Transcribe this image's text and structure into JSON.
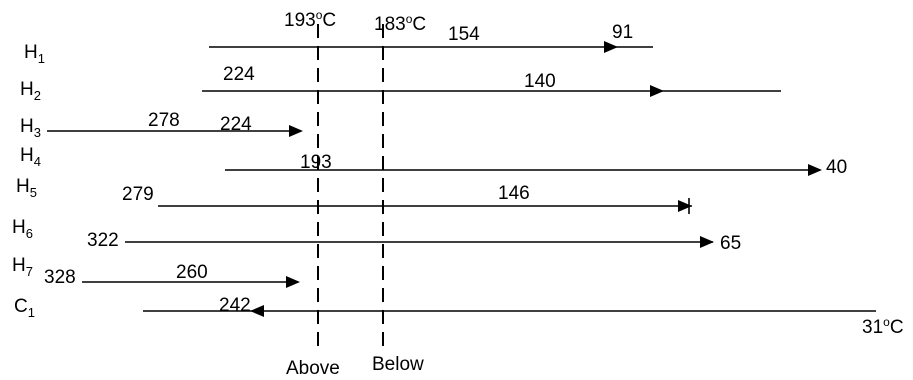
{
  "pinch": {
    "hot_temp": {
      "value": "193",
      "unit_sup": "o",
      "unit": "C"
    },
    "cold_temp": {
      "value": "183",
      "unit_sup": "o",
      "unit": "C"
    },
    "above_label": "Above",
    "below_label": "Below"
  },
  "streams": [
    {
      "id": "H1",
      "letter": "H",
      "sub": "1",
      "labels": [
        "154",
        "91"
      ]
    },
    {
      "id": "H2",
      "letter": "H",
      "sub": "2",
      "labels": [
        "224",
        "140"
      ]
    },
    {
      "id": "H3",
      "letter": "H",
      "sub": "3",
      "labels": [
        "278",
        "224"
      ]
    },
    {
      "id": "H4",
      "letter": "H",
      "sub": "4",
      "labels": [
        "193",
        "40"
      ]
    },
    {
      "id": "H5",
      "letter": "H",
      "sub": "5",
      "labels": [
        "279",
        "146"
      ]
    },
    {
      "id": "H6",
      "letter": "H",
      "sub": "6",
      "labels": [
        "322",
        "65"
      ]
    },
    {
      "id": "H7",
      "letter": "H",
      "sub": "7",
      "labels": [
        "328",
        "260"
      ]
    },
    {
      "id": "C1",
      "letter": "C",
      "sub": "1",
      "labels": [
        "242"
      ],
      "end_temp": {
        "value": "31",
        "unit_sup": "o",
        "unit": "C"
      }
    }
  ]
}
